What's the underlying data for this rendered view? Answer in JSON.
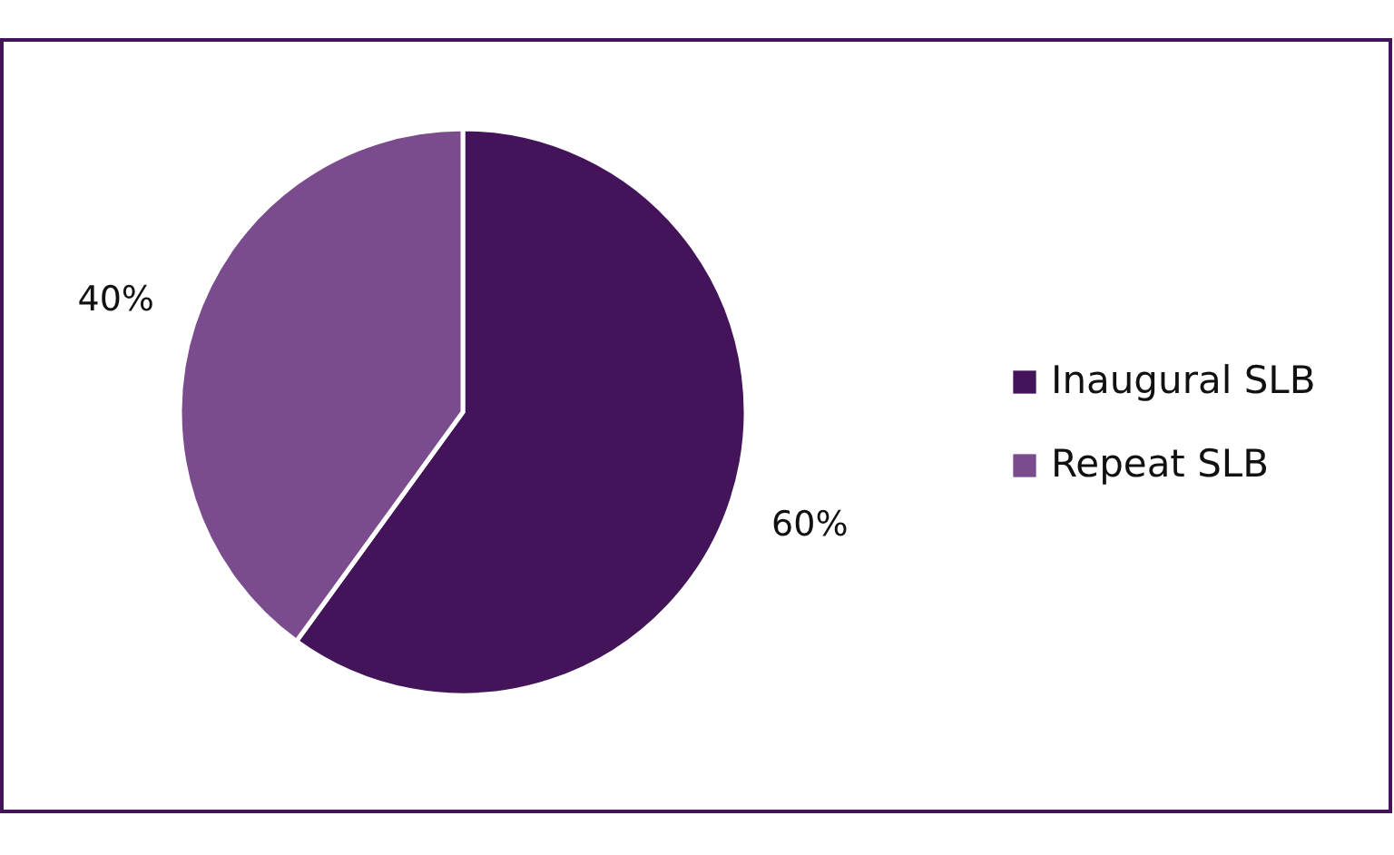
{
  "chart_data": {
    "type": "pie",
    "categories": [
      "Inaugural SLB",
      "Repeat SLB"
    ],
    "values": [
      60,
      40
    ],
    "colors": [
      "#43145a",
      "#7a4c8e"
    ],
    "value_labels": [
      "60%",
      "40%"
    ],
    "legend": "right"
  }
}
